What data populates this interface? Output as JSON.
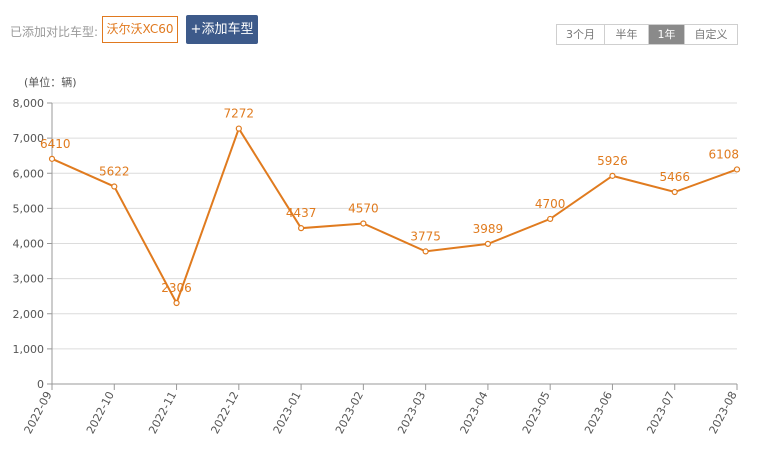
{
  "toolbar": {
    "added_label": "已添加对比车型:",
    "model_chip": "沃尔沃XC60",
    "add_button": "+添加车型",
    "range_tabs": [
      {
        "label": "3个月",
        "active": false
      },
      {
        "label": "半年",
        "active": false
      },
      {
        "label": "1年",
        "active": true
      },
      {
        "label": "自定义",
        "active": false
      }
    ]
  },
  "chart_data": {
    "type": "line",
    "unit_label": "(单位：辆)",
    "categories": [
      "2022-09",
      "2022-10",
      "2022-11",
      "2022-12",
      "2023-01",
      "2023-02",
      "2023-03",
      "2023-04",
      "2023-05",
      "2023-06",
      "2023-07",
      "2023-08"
    ],
    "series": [
      {
        "values": [
          6410,
          5622,
          2306,
          7272,
          4437,
          4570,
          3775,
          3989,
          4700,
          5926,
          5466,
          6108
        ]
      }
    ],
    "y_ticks": [
      "0",
      "1,000",
      "2,000",
      "3,000",
      "4,000",
      "5,000",
      "6,000",
      "7,000",
      "8,000"
    ],
    "ylim": [
      0,
      8000
    ],
    "grid": true,
    "line_color": "#e07b1f"
  }
}
